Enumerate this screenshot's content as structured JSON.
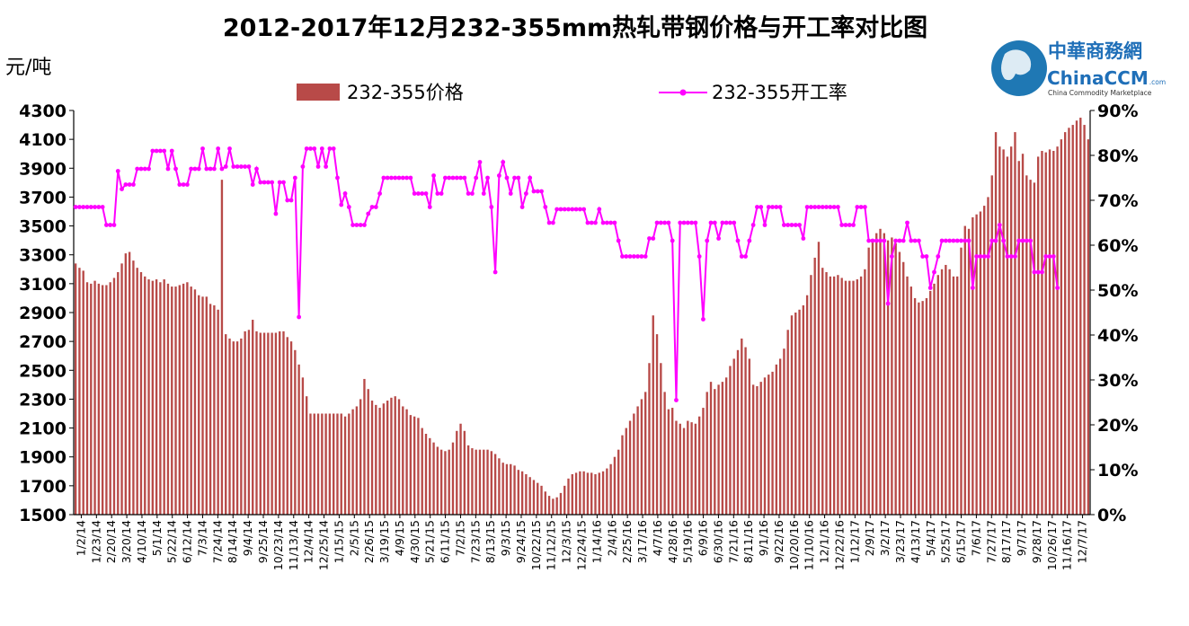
{
  "chart_data": {
    "type": "bar",
    "title": "2012-2017年12月232-355mm热轧带钢价格与开工率对比图",
    "ylabel": "元/吨",
    "ylim": [
      1500,
      4300
    ],
    "y_ticks": [
      "1500",
      "1700",
      "1900",
      "2100",
      "2300",
      "2500",
      "2700",
      "2900",
      "3100",
      "3300",
      "3500",
      "3700",
      "3900",
      "4100",
      "4300"
    ],
    "y2lim": [
      0,
      90
    ],
    "y2_ticks": [
      "0%",
      "10%",
      "20%",
      "30%",
      "40%",
      "50%",
      "60%",
      "70%",
      "80%",
      "90%"
    ],
    "legend_position": "top",
    "x_tick_labels": [
      "1/2/14",
      "1/23/14",
      "2/20/14",
      "3/20/14",
      "4/10/14",
      "5/1/14",
      "5/22/14",
      "6/12/14",
      "7/3/14",
      "7/24/14",
      "8/14/14",
      "9/4/14",
      "9/25/14",
      "10/23/14",
      "11/13/14",
      "12/4/14",
      "12/25/14",
      "1/15/15",
      "2/5/15",
      "2/26/15",
      "3/19/15",
      "4/9/15",
      "4/30/15",
      "5/21/15",
      "6/11/15",
      "7/2/15",
      "7/23/15",
      "8/13/15",
      "9/3/15",
      "9/24/15",
      "10/22/15",
      "11/12/15",
      "12/3/15",
      "12/24/15",
      "1/14/16",
      "2/4/16",
      "2/25/16",
      "3/17/16",
      "4/7/16",
      "4/28/16",
      "5/19/16",
      "6/9/16",
      "6/30/16",
      "7/21/16",
      "8/11/16",
      "9/1/16",
      "9/22/16",
      "10/20/16",
      "11/10/16",
      "12/1/16",
      "12/22/16",
      "1/12/17",
      "2/9/17",
      "3/2/17",
      "3/23/17",
      "4/13/17",
      "5/4/17",
      "5/25/17",
      "6/15/17",
      "7/6/17",
      "7/27/17",
      "8/17/17",
      "9/7/17",
      "9/28/17",
      "10/26/17",
      "11/16/17",
      "12/7/17"
    ],
    "series": [
      {
        "name": "232-355价格",
        "type": "bar",
        "color": "#B84A48",
        "values": [
          3240,
          3210,
          3190,
          3110,
          3100,
          3120,
          3100,
          3090,
          3090,
          3110,
          3140,
          3180,
          3240,
          3310,
          3320,
          3260,
          3210,
          3180,
          3150,
          3130,
          3120,
          3130,
          3110,
          3130,
          3100,
          3080,
          3080,
          3090,
          3100,
          3110,
          3080,
          3060,
          3020,
          3010,
          3010,
          2960,
          2950,
          2920,
          3820,
          2750,
          2720,
          2700,
          2700,
          2720,
          2770,
          2780,
          2850,
          2770,
          2760,
          2760,
          2760,
          2760,
          2760,
          2770,
          2770,
          2730,
          2700,
          2640,
          2540,
          2450,
          2320,
          2200,
          2200,
          2200,
          2200,
          2200,
          2200,
          2200,
          2200,
          2200,
          2180,
          2200,
          2230,
          2250,
          2300,
          2440,
          2370,
          2290,
          2260,
          2240,
          2270,
          2290,
          2310,
          2320,
          2300,
          2250,
          2230,
          2190,
          2180,
          2170,
          2100,
          2060,
          2030,
          2000,
          1970,
          1950,
          1940,
          1950,
          2000,
          2080,
          2130,
          2080,
          1980,
          1960,
          1950,
          1950,
          1950,
          1950,
          1940,
          1920,
          1890,
          1860,
          1850,
          1850,
          1840,
          1810,
          1800,
          1780,
          1760,
          1740,
          1720,
          1700,
          1660,
          1630,
          1610,
          1620,
          1650,
          1700,
          1750,
          1780,
          1790,
          1800,
          1800,
          1790,
          1790,
          1780,
          1790,
          1800,
          1820,
          1850,
          1900,
          1950,
          2050,
          2100,
          2150,
          2200,
          2250,
          2300,
          2350,
          2550,
          2880,
          2750,
          2550,
          2350,
          2230,
          2240,
          2150,
          2130,
          2100,
          2150,
          2140,
          2130,
          2180,
          2240,
          2350,
          2420,
          2370,
          2400,
          2420,
          2450,
          2530,
          2580,
          2640,
          2720,
          2660,
          2580,
          2400,
          2390,
          2420,
          2450,
          2470,
          2490,
          2540,
          2580,
          2650,
          2780,
          2880,
          2900,
          2920,
          2950,
          3020,
          3160,
          3280,
          3390,
          3210,
          3180,
          3150,
          3150,
          3160,
          3140,
          3120,
          3120,
          3120,
          3130,
          3150,
          3200,
          3350,
          3400,
          3450,
          3480,
          3450,
          3400,
          3420,
          3380,
          3320,
          3250,
          3150,
          3080,
          3000,
          2970,
          2980,
          3000,
          3050,
          3100,
          3160,
          3200,
          3230,
          3200,
          3150,
          3150,
          3350,
          3500,
          3480,
          3560,
          3580,
          3600,
          3640,
          3700,
          3850,
          4150,
          4050,
          4030,
          3980,
          4050,
          4150,
          3950,
          4000,
          3850,
          3820,
          3800,
          3980,
          4020,
          4010,
          4030,
          4020,
          4050,
          4100,
          4150,
          4180,
          4200,
          4230,
          4250,
          4200,
          4100
        ]
      },
      {
        "name": "232-355开工率",
        "type": "line",
        "color": "#FF00FF",
        "values": [
          68.5,
          68.5,
          68.5,
          68.5,
          68.5,
          68.5,
          68.5,
          68.5,
          64.5,
          64.5,
          64.5,
          76.5,
          72.5,
          73.5,
          73.5,
          73.5,
          77.0,
          77.0,
          77.0,
          77.0,
          81.0,
          81.0,
          81.0,
          81.0,
          77.0,
          81.0,
          77.0,
          73.5,
          73.5,
          73.5,
          77.0,
          77.0,
          77.0,
          81.5,
          77.0,
          77.0,
          77.0,
          81.5,
          77.0,
          77.5,
          81.5,
          77.5,
          77.5,
          77.5,
          77.5,
          77.5,
          73.5,
          77.0,
          74.0,
          74.0,
          74.0,
          74.0,
          67.0,
          74.0,
          74.0,
          70.0,
          70.0,
          75.0,
          44.0,
          77.5,
          81.5,
          81.5,
          81.5,
          77.5,
          81.5,
          77.5,
          81.5,
          81.5,
          75.0,
          69.0,
          71.5,
          68.5,
          64.5,
          64.5,
          64.5,
          64.5,
          67.0,
          68.5,
          68.5,
          71.5,
          75.0,
          75.0,
          75.0,
          75.0,
          75.0,
          75.0,
          75.0,
          75.0,
          71.5,
          71.5,
          71.5,
          71.5,
          68.5,
          75.5,
          71.5,
          71.5,
          75.0,
          75.0,
          75.0,
          75.0,
          75.0,
          75.0,
          71.5,
          71.5,
          75.0,
          78.5,
          71.5,
          75.0,
          68.5,
          54.0,
          75.5,
          78.5,
          75.0,
          71.5,
          75.0,
          75.0,
          68.5,
          71.5,
          75.0,
          72.0,
          72.0,
          72.0,
          68.5,
          65.0,
          65.0,
          68.0,
          68.0,
          68.0,
          68.0,
          68.0,
          68.0,
          68.0,
          68.0,
          65.0,
          65.0,
          65.0,
          68.0,
          65.0,
          65.0,
          65.0,
          65.0,
          61.0,
          57.5,
          57.5,
          57.5,
          57.5,
          57.5,
          57.5,
          57.5,
          61.5,
          61.5,
          65.0,
          65.0,
          65.0,
          65.0,
          61.0,
          25.5,
          65.0,
          65.0,
          65.0,
          65.0,
          65.0,
          57.5,
          43.5,
          61.0,
          65.0,
          65.0,
          61.5,
          65.0,
          65.0,
          65.0,
          65.0,
          61.0,
          57.5,
          57.5,
          61.0,
          64.5,
          68.5,
          68.5,
          64.5,
          68.5,
          68.5,
          68.5,
          68.5,
          64.5,
          64.5,
          64.5,
          64.5,
          64.5,
          61.5,
          68.5,
          68.5,
          68.5,
          68.5,
          68.5,
          68.5,
          68.5,
          68.5,
          68.5,
          64.5,
          64.5,
          64.5,
          64.5,
          68.5,
          68.5,
          68.5,
          61.0,
          61.0,
          61.0,
          61.0,
          61.0,
          47.0,
          57.5,
          61.0,
          61.0,
          61.0,
          65.0,
          61.0,
          61.0,
          61.0,
          57.5,
          57.5,
          50.5,
          54.0,
          57.5,
          61.0,
          61.0,
          61.0,
          61.0,
          61.0,
          61.0,
          61.0,
          61.0,
          50.5,
          57.5,
          57.5,
          57.5,
          57.5,
          61.0,
          61.0,
          64.5,
          61.0,
          57.5,
          57.5,
          57.5,
          61.0,
          61.0,
          61.0,
          61.0,
          54.0,
          54.0,
          54.0,
          57.5,
          57.5,
          57.5,
          50.5
        ]
      }
    ]
  },
  "logo": {
    "name_cn": "中華商務網",
    "name_en_main": "ChinaCCM",
    "name_en_suffix": ".com",
    "tagline": "China Commodity Marketplace"
  }
}
